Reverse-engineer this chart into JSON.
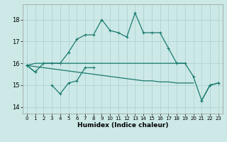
{
  "xlabel": "Humidex (Indice chaleur)",
  "xlim": [
    -0.5,
    23.5
  ],
  "ylim": [
    13.7,
    18.7
  ],
  "yticks": [
    14,
    15,
    16,
    17,
    18
  ],
  "xticks": [
    0,
    1,
    2,
    3,
    4,
    5,
    6,
    7,
    8,
    9,
    10,
    11,
    12,
    13,
    14,
    15,
    16,
    17,
    18,
    19,
    20,
    21,
    22,
    23
  ],
  "bg_color": "#cce9e7",
  "grid_color": "#aacfcc",
  "line_color": "#1a7a6e",
  "series_main": [
    15.9,
    15.6,
    16.0,
    16.0,
    16.0,
    16.5,
    17.1,
    17.3,
    17.3,
    18.0,
    17.5,
    17.4,
    17.2,
    18.3,
    17.4,
    17.4,
    17.4,
    16.7,
    16.0,
    16.0,
    15.4,
    14.3,
    15.0,
    15.1
  ],
  "series_low": [
    15.9,
    15.6,
    null,
    15.0,
    14.6,
    15.1,
    15.2,
    15.8,
    15.8,
    null,
    null,
    null,
    null,
    null,
    null,
    null,
    null,
    null,
    null,
    null,
    null,
    14.3,
    15.0,
    15.1
  ],
  "series_flat": [
    15.9,
    16.0,
    16.0,
    16.0,
    16.0,
    16.0,
    16.0,
    16.0,
    16.0,
    16.0,
    16.0,
    16.0,
    16.0,
    16.0,
    16.0,
    16.0,
    16.0,
    16.0,
    16.0,
    16.0,
    null,
    null,
    null,
    null
  ],
  "series_slope": [
    15.9,
    15.85,
    15.8,
    15.75,
    15.7,
    15.65,
    15.6,
    15.55,
    15.5,
    15.45,
    15.4,
    15.35,
    15.3,
    15.25,
    15.2,
    15.2,
    15.15,
    15.15,
    15.1,
    15.1,
    15.1,
    null,
    null,
    15.1
  ]
}
